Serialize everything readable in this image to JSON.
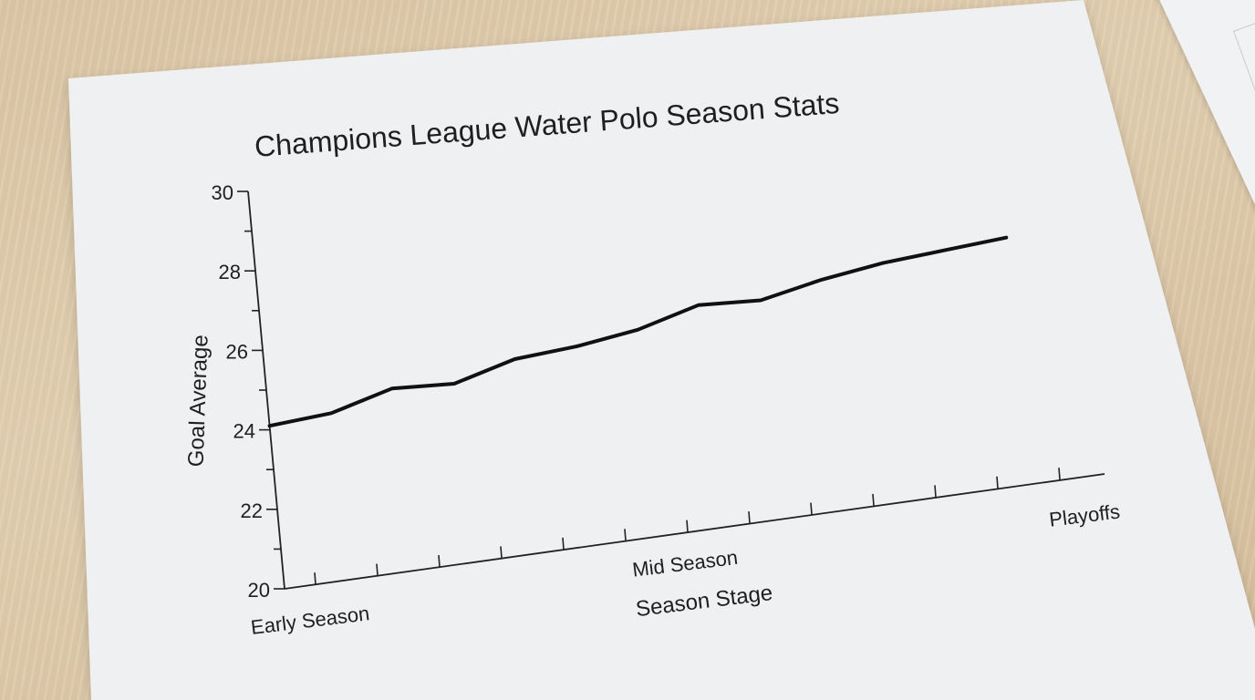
{
  "chart_data": {
    "type": "line",
    "title": "Champions League Water Polo Season Stats",
    "xlabel": "Season Stage",
    "ylabel": "Goal Average",
    "ylim": [
      20,
      30
    ],
    "y_ticks": [
      "20",
      "22",
      "24",
      "26",
      "28",
      "30"
    ],
    "x_tick_labels": [
      {
        "label": "Early Season",
        "at": 0
      },
      {
        "label": "Mid Season",
        "at": 6.5
      },
      {
        "label": "Playoffs",
        "at": 12
      }
    ],
    "grid": false,
    "series": [
      {
        "values": [
          24.1,
          24.2,
          24.6,
          24.5,
          24.9,
          25.0,
          25.2,
          25.6,
          25.5,
          25.8,
          26.0,
          26.1,
          26.2
        ]
      }
    ],
    "line_color": "#111111"
  }
}
